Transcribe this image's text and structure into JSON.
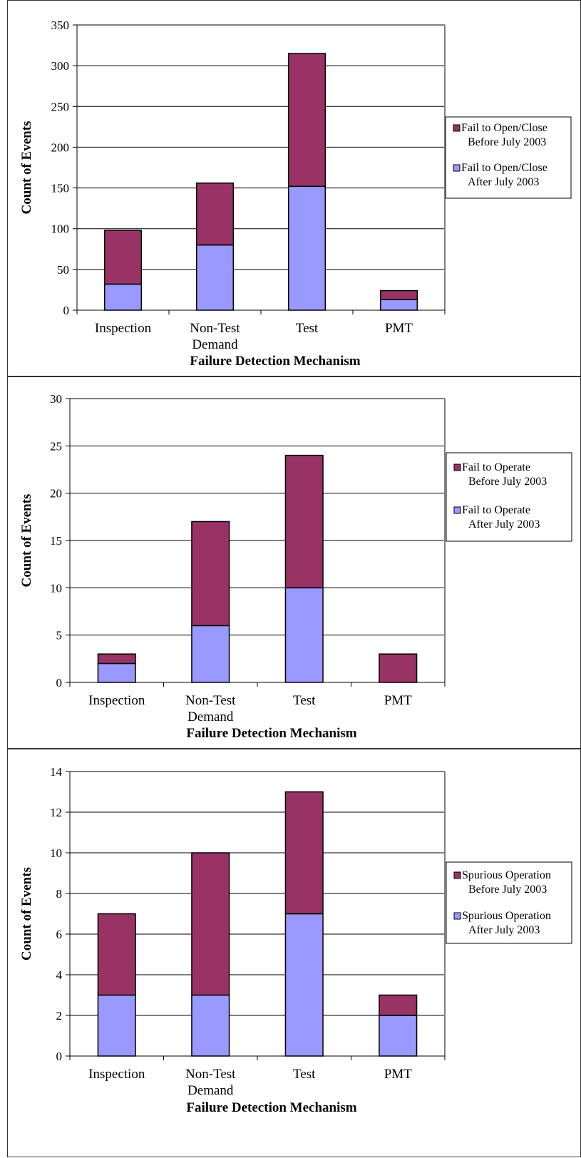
{
  "colors": {
    "before": "#993366",
    "after": "#9999FF",
    "grid": "#000000",
    "frame": "#808080"
  },
  "chart_data": [
    {
      "type": "bar",
      "stacked": true,
      "categories": [
        [
          "Inspection"
        ],
        [
          "Non-Test",
          "Demand"
        ],
        [
          "Test"
        ],
        [
          "PMT"
        ]
      ],
      "series": [
        {
          "name": [
            "Fail to Open/Close",
            "After July 2003"
          ],
          "values": [
            32,
            80,
            152,
            13
          ]
        },
        {
          "name": [
            "Fail to Open/Close",
            "Before July 2003"
          ],
          "values": [
            66,
            76,
            163,
            11
          ]
        }
      ],
      "xlabel": "Failure Detection Mechanism",
      "ylabel": "Count of Events",
      "ylim": [
        0,
        350
      ],
      "yticks": [
        0,
        50,
        100,
        150,
        200,
        250,
        300,
        350
      ],
      "legend": "right",
      "grid": true
    },
    {
      "type": "bar",
      "stacked": true,
      "categories": [
        [
          "Inspection"
        ],
        [
          "Non-Test",
          "Demand"
        ],
        [
          "Test"
        ],
        [
          "PMT"
        ]
      ],
      "series": [
        {
          "name": [
            "Fail to Operate",
            "After July 2003"
          ],
          "values": [
            2,
            6,
            10,
            0
          ]
        },
        {
          "name": [
            "Fail to Operate",
            "Before July 2003"
          ],
          "values": [
            1,
            11,
            14,
            3
          ]
        }
      ],
      "xlabel": "Failure Detection Mechanism",
      "ylabel": "Count of Events",
      "ylim": [
        0,
        30
      ],
      "yticks": [
        0,
        5,
        10,
        15,
        20,
        25,
        30
      ],
      "legend": "right",
      "grid": true
    },
    {
      "type": "bar",
      "stacked": true,
      "categories": [
        [
          "Inspection"
        ],
        [
          "Non-Test",
          "Demand"
        ],
        [
          "Test"
        ],
        [
          "PMT"
        ]
      ],
      "series": [
        {
          "name": [
            "Spurious Operation",
            "After July 2003"
          ],
          "values": [
            3,
            3,
            7,
            2
          ]
        },
        {
          "name": [
            "Spurious Operation",
            "Before July 2003"
          ],
          "values": [
            4,
            7,
            6,
            1
          ]
        }
      ],
      "xlabel": "Failure Detection Mechanism",
      "ylabel": "Count of Events",
      "ylim": [
        0,
        14
      ],
      "yticks": [
        0,
        2,
        4,
        6,
        8,
        10,
        12,
        14
      ],
      "legend": "right",
      "grid": true
    }
  ]
}
